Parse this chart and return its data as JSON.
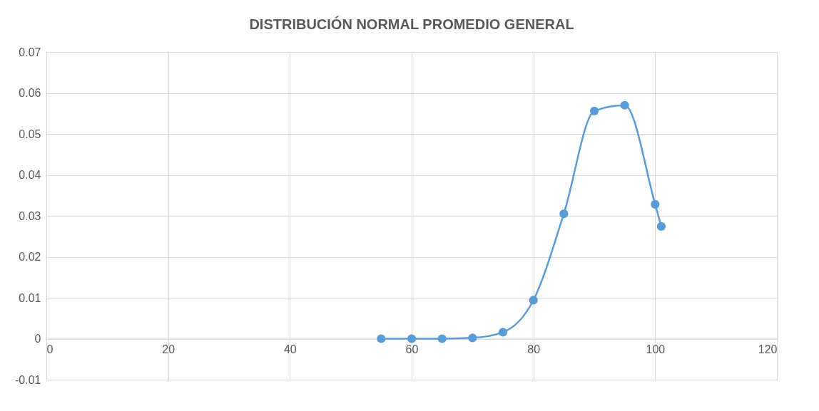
{
  "chart_data": {
    "type": "scatter",
    "title": "DISTRIBUCIÓN NORMAL PROMEDIO GENERAL",
    "x": [
      55,
      60,
      65,
      70,
      75,
      80,
      85,
      90,
      95,
      100,
      101
    ],
    "series": [
      {
        "type": "line",
        "color": "#5b9bd5",
        "values": [
          0,
          0,
          0,
          0.0002,
          0.0016,
          0.0094,
          0.0305,
          0.0556,
          0.057,
          0.0328,
          0.0274
        ]
      }
    ],
    "marker": "circle",
    "xlim": [
      0,
      120
    ],
    "xticks": [
      0,
      20,
      40,
      60,
      80,
      100,
      120
    ],
    "ylim": [
      -0.01,
      0.07
    ],
    "yticks": [
      -0.01,
      0,
      0.01,
      0.02,
      0.03,
      0.04,
      0.05,
      0.06,
      0.07
    ],
    "grid": true
  }
}
